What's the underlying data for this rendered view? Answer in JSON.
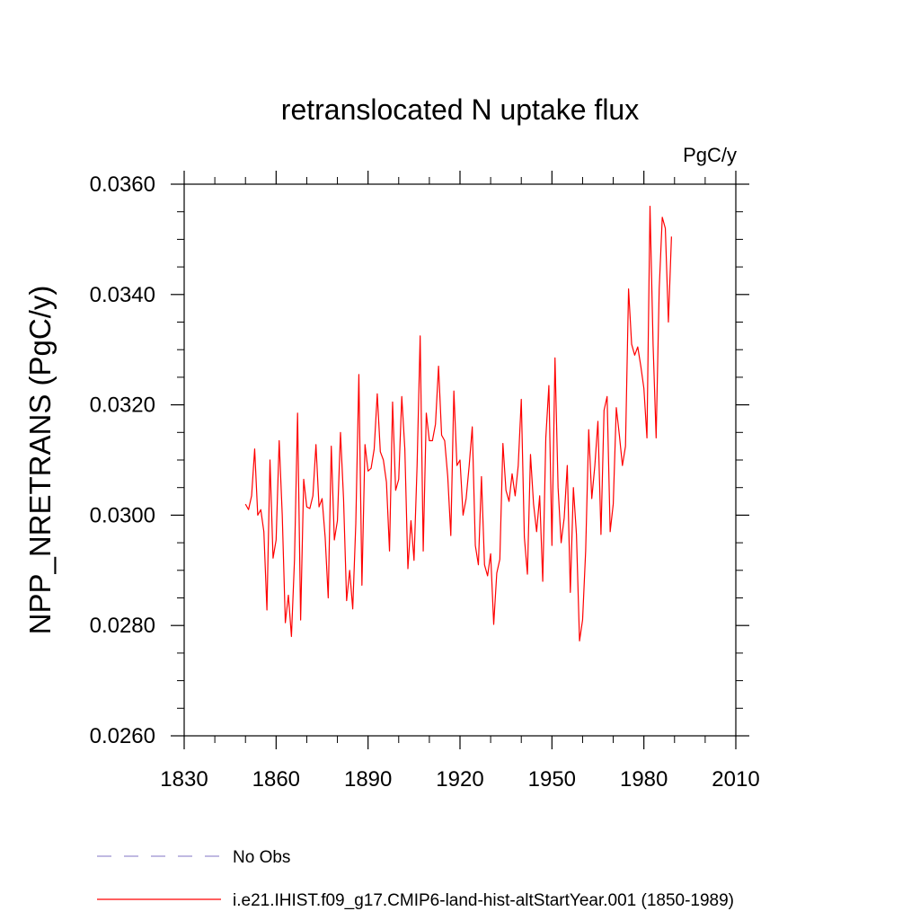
{
  "chart_data": {
    "type": "line",
    "title": "retranslocated N uptake flux",
    "units": "PgC/y",
    "ylabel": "NPP_NRETRANS  (PgC/y)",
    "xlabel": "",
    "xlim": [
      1830,
      2010
    ],
    "ylim": [
      0.026,
      0.036
    ],
    "x_ticks": [
      1830,
      1860,
      1890,
      1920,
      1950,
      1980,
      2010
    ],
    "x_tick_labels": [
      "1830",
      "1860",
      "1890",
      "1920",
      "1950",
      "1980",
      "2010"
    ],
    "x_minor_step": 10,
    "y_ticks": [
      0.026,
      0.028,
      0.03,
      0.032,
      0.034,
      0.036
    ],
    "y_tick_labels": [
      "0.0260",
      "0.0280",
      "0.0300",
      "0.0320",
      "0.0340",
      "0.0360"
    ],
    "y_minor_step": 0.0005,
    "grid": false,
    "legend_position": "bottom-left, below plot",
    "series": [
      {
        "name": "No Obs",
        "color": "#9a8fd0",
        "dash": "dashed",
        "x": [],
        "values": []
      },
      {
        "name": "i.e21.IHIST.f09_g17.CMIP6-land-hist-altStartYear.001 (1850-1989)",
        "color": "#ff0000",
        "dash": "solid",
        "x": [
          1850,
          1851,
          1852,
          1853,
          1854,
          1855,
          1856,
          1857,
          1858,
          1859,
          1860,
          1861,
          1862,
          1863,
          1864,
          1865,
          1866,
          1867,
          1868,
          1869,
          1870,
          1871,
          1872,
          1873,
          1874,
          1875,
          1876,
          1877,
          1878,
          1879,
          1880,
          1881,
          1882,
          1883,
          1884,
          1885,
          1886,
          1887,
          1888,
          1889,
          1890,
          1891,
          1892,
          1893,
          1894,
          1895,
          1896,
          1897,
          1898,
          1899,
          1900,
          1901,
          1902,
          1903,
          1904,
          1905,
          1906,
          1907,
          1908,
          1909,
          1910,
          1911,
          1912,
          1913,
          1914,
          1915,
          1916,
          1917,
          1918,
          1919,
          1920,
          1921,
          1922,
          1923,
          1924,
          1925,
          1926,
          1927,
          1928,
          1929,
          1930,
          1931,
          1932,
          1933,
          1934,
          1935,
          1936,
          1937,
          1938,
          1939,
          1940,
          1941,
          1942,
          1943,
          1944,
          1945,
          1946,
          1947,
          1948,
          1949,
          1950,
          1951,
          1952,
          1953,
          1954,
          1955,
          1956,
          1957,
          1958,
          1959,
          1960,
          1961,
          1962,
          1963,
          1964,
          1965,
          1966,
          1967,
          1968,
          1969,
          1970,
          1971,
          1972,
          1973,
          1974,
          1975,
          1976,
          1977,
          1978,
          1979,
          1980,
          1981,
          1982,
          1983,
          1984,
          1985,
          1986,
          1987,
          1988,
          1989
        ],
        "values": [
          0.0302,
          0.0301,
          0.03035,
          0.0312,
          0.03,
          0.0301,
          0.0297,
          0.02828,
          0.031,
          0.02922,
          0.02955,
          0.03135,
          0.03,
          0.02805,
          0.02855,
          0.0278,
          0.0292,
          0.03185,
          0.0281,
          0.03065,
          0.03015,
          0.03012,
          0.03035,
          0.03128,
          0.03015,
          0.0303,
          0.0296,
          0.0285,
          0.03125,
          0.02955,
          0.0299,
          0.0315,
          0.0303,
          0.02845,
          0.029,
          0.0283,
          0.02985,
          0.03255,
          0.02873,
          0.03128,
          0.0308,
          0.03085,
          0.0312,
          0.0322,
          0.03115,
          0.031,
          0.0306,
          0.02935,
          0.03205,
          0.03045,
          0.03065,
          0.03215,
          0.0312,
          0.02903,
          0.0299,
          0.02918,
          0.0309,
          0.03325,
          0.02935,
          0.03185,
          0.03135,
          0.03135,
          0.03165,
          0.0327,
          0.03145,
          0.03135,
          0.0307,
          0.02963,
          0.03225,
          0.0309,
          0.031,
          0.03,
          0.0303,
          0.0309,
          0.0316,
          0.02945,
          0.0291,
          0.0307,
          0.0291,
          0.0289,
          0.0293,
          0.02802,
          0.02895,
          0.0292,
          0.0313,
          0.03045,
          0.03025,
          0.03075,
          0.03035,
          0.0309,
          0.0321,
          0.0296,
          0.02893,
          0.0311,
          0.0302,
          0.0297,
          0.03035,
          0.0288,
          0.0314,
          0.03235,
          0.02945,
          0.03285,
          0.0305,
          0.0295,
          0.02995,
          0.0309,
          0.0286,
          0.0305,
          0.02965,
          0.02772,
          0.0281,
          0.02935,
          0.03155,
          0.0303,
          0.0309,
          0.0317,
          0.02965,
          0.0319,
          0.03215,
          0.0297,
          0.0302,
          0.03195,
          0.03145,
          0.0309,
          0.03125,
          0.0341,
          0.0331,
          0.0329,
          0.03305,
          0.0327,
          0.0323,
          0.0314,
          0.0356,
          0.0331,
          0.0314,
          0.0341,
          0.0354,
          0.0352,
          0.0335,
          0.03505
        ]
      }
    ]
  }
}
